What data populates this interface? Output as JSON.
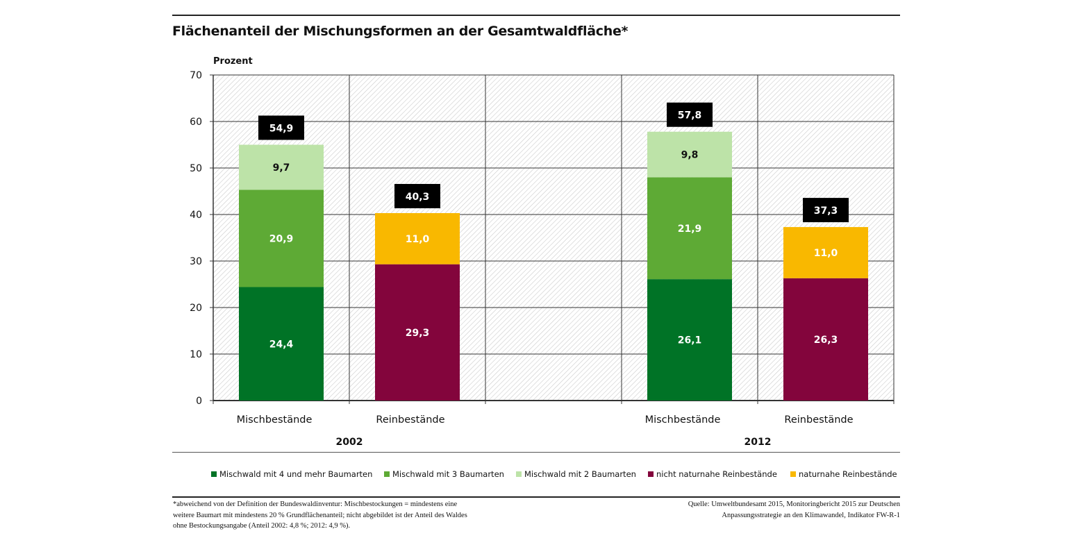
{
  "chart_data": {
    "type": "bar",
    "stacked": true,
    "title": "Flächenanteil der Mischungsformen an der Gesamtwaldfläche*",
    "ylabel": "Prozent",
    "ylim": [
      0,
      70
    ],
    "yticks": [
      0,
      10,
      20,
      30,
      40,
      50,
      60,
      70
    ],
    "grid": true,
    "legend_placement": "bottom",
    "groups": [
      {
        "label": "2002",
        "categories": [
          "Mischbestände",
          "Reinbestände"
        ]
      },
      {
        "label": "2012",
        "categories": [
          "Mischbestände",
          "Reinbestände"
        ]
      }
    ],
    "series": [
      {
        "name": "Mischwald mit 4 und mehr Baumarten",
        "color": "#007326",
        "values": [
          24.4,
          null,
          26.1,
          null
        ],
        "labels": [
          "24,4",
          null,
          "26,1",
          null
        ]
      },
      {
        "name": "Mischwald mit 3 Baumarten",
        "color": "#5eaa35",
        "values": [
          20.9,
          null,
          21.9,
          null
        ],
        "labels": [
          "20,9",
          null,
          "21,9",
          null
        ]
      },
      {
        "name": "Mischwald mit 2 Baumarten",
        "color": "#bde3a8",
        "values": [
          9.7,
          null,
          9.8,
          null
        ],
        "labels": [
          "9,7",
          null,
          "9,8",
          null
        ]
      },
      {
        "name": "nicht naturnahe Reinbestände",
        "color": "#83053c",
        "values": [
          null,
          29.3,
          null,
          26.3
        ],
        "labels": [
          null,
          "29,3",
          null,
          "26,3"
        ]
      },
      {
        "name": "naturnahe Reinbestände",
        "color": "#f9b800",
        "values": [
          null,
          11.0,
          null,
          11.0
        ],
        "labels": [
          null,
          "11,0",
          null,
          "11,0"
        ]
      }
    ],
    "totals": [
      "54,9",
      "40,3",
      "57,8",
      "37,3"
    ]
  },
  "footnote": [
    "*abweichend von der Definition der Bundeswaldinventur: Mischbestockungen = mindestens eine",
    "weitere Baumart mit mindestens 20 % Grundflächenanteil; nicht abgebildet ist der Anteil des Waldes",
    "ohne Bestockungsangabe (Anteil 2002: 4,8 %; 2012: 4,9 %)."
  ],
  "source": [
    "Quelle: Umweltbundesamt 2015, Monitoringbericht 2015 zur Deutschen",
    "Anpassungsstrategie an den Klimawandel, Indikator FW-R-1"
  ]
}
